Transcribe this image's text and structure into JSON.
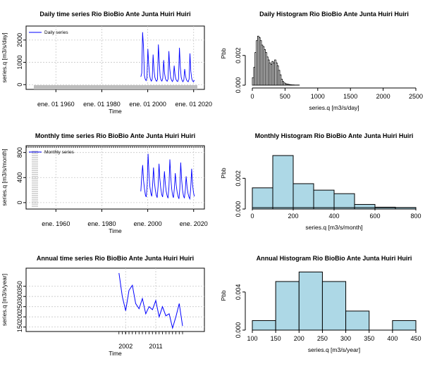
{
  "chart_data": [
    {
      "id": "daily-ts",
      "type": "line",
      "title": "Daily time series Rio BioBio Ante Junta Huiri Huiri",
      "xlabel": "Time",
      "ylabel": "series.q [m3/s/day]",
      "x_tick_labels": [
        "ene. 01 1960",
        "ene. 01 1980",
        "ene. 01 2000",
        "ene. 01 2020"
      ],
      "x_ticks": [
        1960,
        1980,
        2000,
        2020
      ],
      "xlim": [
        1951,
        2021
      ],
      "y_ticks": [
        0,
        1000,
        2000
      ],
      "ylim": [
        -150,
        2500
      ],
      "grid": true,
      "legend": {
        "position": "top-left",
        "entries": [
          "Daily series"
        ]
      },
      "series": [
        {
          "name": "Daily series",
          "color": "#0000ff",
          "x_start": 1997.0,
          "x_end": 2020.3,
          "values": [
            350,
            520,
            2350,
            1700,
            420,
            250,
            180,
            300,
            1600,
            900,
            420,
            230,
            160,
            260,
            1350,
            650,
            330,
            200,
            150,
            240,
            1800,
            1000,
            380,
            210,
            160,
            280,
            1100,
            520,
            270,
            190,
            150,
            250,
            1500,
            700,
            330,
            200,
            140,
            220,
            850,
            450,
            240,
            170,
            140,
            260,
            1650,
            800,
            330,
            190,
            130,
            210,
            700,
            380,
            220,
            160,
            130,
            250,
            1400,
            600,
            280,
            170,
            130,
            200
          ]
        }
      ]
    },
    {
      "id": "daily-hist",
      "type": "bar",
      "title": "Daily Histogram Rio BioBio Ante Junta Huiri Huiri",
      "xlabel": "series.q [m3/s/day]",
      "ylabel": "Pbb",
      "x_ticks": [
        0,
        500,
        1000,
        1500,
        2000,
        2500
      ],
      "y_ticks": [
        0,
        0.002
      ],
      "y_tick_labels": [
        "0.000",
        "0.002"
      ],
      "xlim": [
        0,
        2500
      ],
      "ylim": [
        0,
        0.0036
      ],
      "bin_width": 20,
      "bin_start": 0,
      "fill": "#ffffff",
      "values": [
        0.0005,
        0.0012,
        0.0022,
        0.003,
        0.0033,
        0.0032,
        0.003,
        0.0027,
        0.0026,
        0.0024,
        0.0022,
        0.0019,
        0.0017,
        0.0015,
        0.0014,
        0.0016,
        0.0015,
        0.0017,
        0.0015,
        0.0013,
        0.001,
        0.0007,
        0.0004,
        0.00025,
        0.00015,
        0.0001,
        8e-05,
        6e-05,
        4e-05,
        3e-05,
        2e-05,
        2e-05,
        1e-05,
        1e-05,
        1e-05,
        1e-05
      ]
    },
    {
      "id": "monthly-ts",
      "type": "line",
      "title": "Monthly time series Rio BioBio Ante Junta Huiri Huiri",
      "xlabel": "Time",
      "ylabel": "series.q [m3/s/month]",
      "x_tick_labels": [
        "ene. 1960",
        "ene. 1980",
        "ene. 2000",
        "ene. 2020"
      ],
      "x_ticks": [
        1960,
        1980,
        2000,
        2020
      ],
      "xlim": [
        1951,
        2021
      ],
      "y_ticks": [
        0,
        400,
        800
      ],
      "ylim": [
        -80,
        830
      ],
      "grid": true,
      "legend": {
        "position": "top-left",
        "entries": [
          "Monthly series"
        ]
      },
      "series": [
        {
          "name": "Monthly series",
          "color": "#0000ff",
          "x_start": 1997.0,
          "x_end": 2020.3,
          "values": [
            180,
            420,
            600,
            350,
            220,
            120,
            90,
            280,
            780,
            450,
            250,
            150,
            100,
            300,
            560,
            320,
            200,
            120,
            80,
            260,
            620,
            380,
            230,
            130,
            90,
            240,
            500,
            300,
            180,
            110,
            70,
            250,
            690,
            400,
            220,
            120,
            80,
            230,
            470,
            280,
            170,
            100,
            60,
            220,
            640,
            360,
            200,
            110,
            70,
            200,
            420,
            250,
            150,
            90,
            60,
            230,
            540,
            300,
            170,
            100
          ]
        }
      ]
    },
    {
      "id": "monthly-hist",
      "type": "bar",
      "title": "Monthly Histogram Rio BioBio Ante Junta Huiri Huiri",
      "xlabel": "series.q [m3/s/month]",
      "ylabel": "Pbb",
      "x_ticks": [
        0,
        200,
        400,
        600,
        800
      ],
      "y_ticks": [
        0,
        0.002
      ],
      "y_tick_labels": [
        "0.000",
        "0.002"
      ],
      "xlim": [
        0,
        800
      ],
      "ylim": [
        0,
        0.0038
      ],
      "bin_width": 100,
      "bin_start": 0,
      "fill": "#add8e6",
      "values": [
        0.00138,
        0.00348,
        0.00165,
        0.00123,
        0.001,
        0.0003,
        0.00012,
        0.0001
      ]
    },
    {
      "id": "annual-ts",
      "type": "line",
      "title": "Annual time series Rio BioBio Ante Junta Huiri Huiri",
      "xlabel": "Time",
      "ylabel": "series.q [m3/s/year]",
      "x_tick_labels": [
        "2002",
        "2011"
      ],
      "x_ticks": [
        2002,
        2011
      ],
      "xlim": [
        1975,
        2023
      ],
      "y_ticks": [
        150,
        200,
        250,
        300,
        350
      ],
      "ylim": [
        135,
        425
      ],
      "grid": true,
      "series": [
        {
          "name": "",
          "color": "#0000ff",
          "x": [
            2000,
            2001,
            2002,
            2003,
            2004,
            2005,
            2006,
            2007,
            2008,
            2009,
            2010,
            2011,
            2012,
            2013,
            2014,
            2015,
            2016,
            2017,
            2018,
            2019
          ],
          "values": [
            415,
            300,
            230,
            330,
            355,
            265,
            240,
            290,
            215,
            250,
            235,
            280,
            200,
            250,
            205,
            215,
            145,
            200,
            265,
            155
          ]
        }
      ]
    },
    {
      "id": "annual-hist",
      "type": "bar",
      "title": "Annual Histogram Rio BioBio Ante Junta Huiri Huiri",
      "xlabel": "series.q [m3/s/year]",
      "ylabel": "Pbb",
      "x_ticks": [
        100,
        150,
        200,
        250,
        300,
        350,
        400,
        450
      ],
      "y_ticks": [
        0,
        0.004
      ],
      "y_tick_labels": [
        "0.000",
        "0.004"
      ],
      "xlim": [
        100,
        450
      ],
      "ylim": [
        0,
        0.0065
      ],
      "bin_width": 50,
      "bin_start": 100,
      "fill": "#add8e6",
      "values": [
        0.001,
        0.0051,
        0.0061,
        0.0051,
        0.002,
        0.0,
        0.001
      ]
    }
  ]
}
